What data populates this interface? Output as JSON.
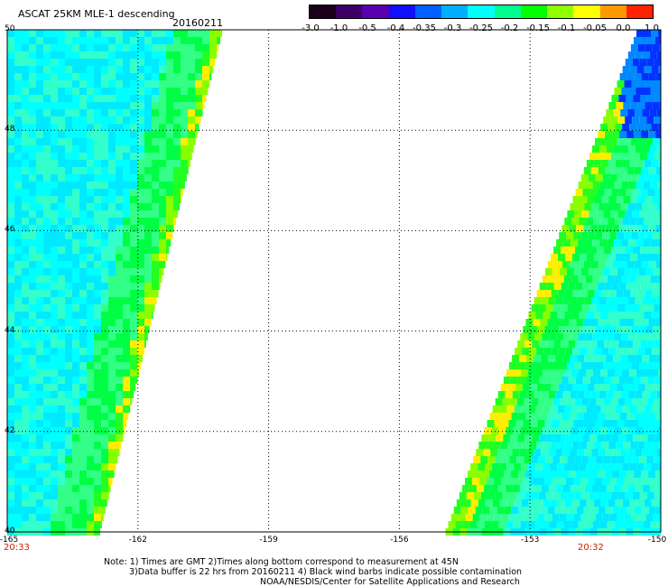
{
  "header": {
    "title": "ASCAT 25KM MLE-1 descending",
    "date": "20160211"
  },
  "colorbar": {
    "labels": [
      "-3.0",
      "-1.0",
      "-0.5",
      "-0.4",
      "-0.35",
      "-0.3",
      "-0.25",
      "-0.2",
      "-0.15",
      "-0.1",
      "-0.05",
      "0.0",
      "1.0"
    ],
    "colors": [
      "#1a001a",
      "#3b0066",
      "#5a00b0",
      "#1010ff",
      "#0060ff",
      "#00b0ff",
      "#00ffff",
      "#00ff90",
      "#00ff00",
      "#90ff00",
      "#ffff00",
      "#ff9900",
      "#ff2200"
    ]
  },
  "map": {
    "lat_labels": [
      "50",
      "48",
      "46",
      "44",
      "42",
      "40"
    ],
    "lon_labels": [
      "-165",
      "-162",
      "-159",
      "-156",
      "-153",
      "-150"
    ],
    "lat_range": [
      40,
      50
    ],
    "lon_range": [
      -165,
      -150
    ],
    "grid": true,
    "time_left": "20:33",
    "time_right": "20:32"
  },
  "notes": {
    "line1": "Note: 1) Times are GMT 2)Times along bottom correspond to measurement at 45N",
    "line2": "3)Data buffer is 22 hrs from 20160211 4) Black wind barbs indicate possible contamination",
    "line3": "NOAA/NESDIS/Center for Satellite Applications and Research"
  }
}
